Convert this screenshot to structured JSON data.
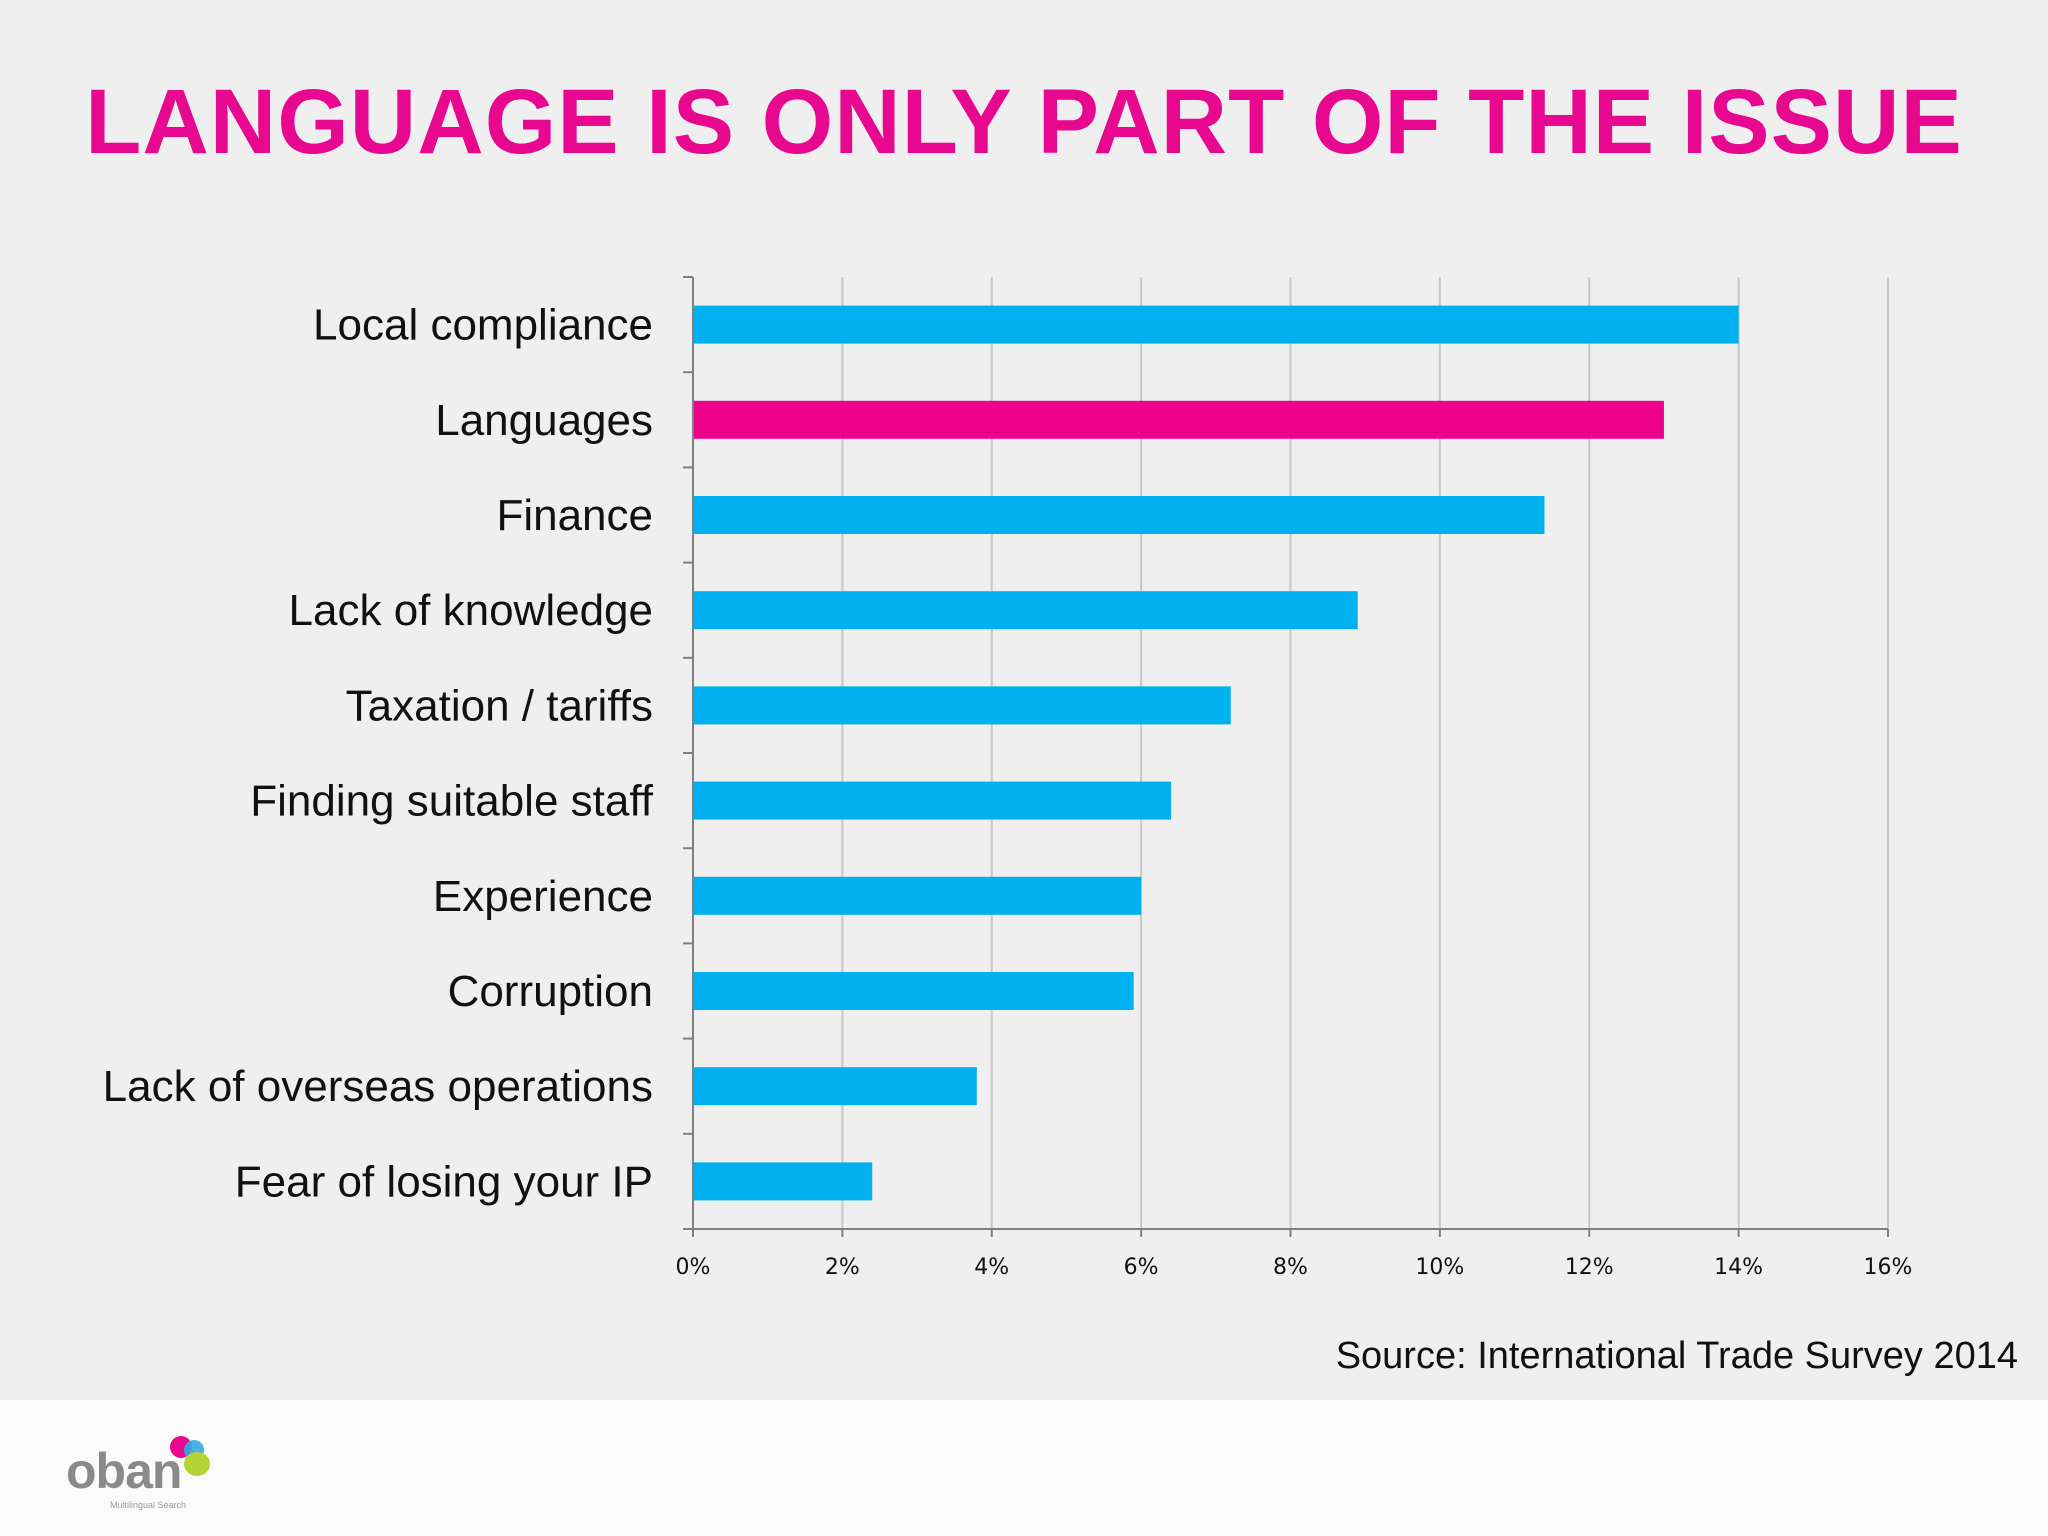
{
  "title": "LANGUAGE IS ONLY PART OF THE ISSUE",
  "source": "Source: International Trade Survey 2014",
  "logo": {
    "name": "oban",
    "tagline": "Multilingual Search"
  },
  "colors": {
    "title": "#e8078f",
    "bar": "#00b0ef",
    "highlight": "#ec008c",
    "grid": "#c8c8c8",
    "axis": "#7f7f7f"
  },
  "chart_data": {
    "type": "bar",
    "orientation": "horizontal",
    "categories": [
      "Local compliance",
      "Languages",
      "Finance",
      "Lack of knowledge",
      "Taxation / tariffs",
      "Finding suitable staff",
      "Experience",
      "Corruption",
      "Lack of overseas operations",
      "Fear of losing your IP"
    ],
    "values": [
      14.0,
      13.0,
      11.4,
      8.9,
      7.2,
      6.4,
      6.0,
      5.9,
      3.8,
      2.4
    ],
    "highlight_category": "Languages",
    "xlim": [
      0,
      16
    ],
    "xticks": [
      0,
      2,
      4,
      6,
      8,
      10,
      12,
      14,
      16
    ],
    "tick_labels": [
      "0%",
      "2%",
      "4%",
      "6%",
      "8%",
      "10%",
      "12%",
      "14%",
      "16%"
    ],
    "grid": true,
    "legend": "none"
  }
}
